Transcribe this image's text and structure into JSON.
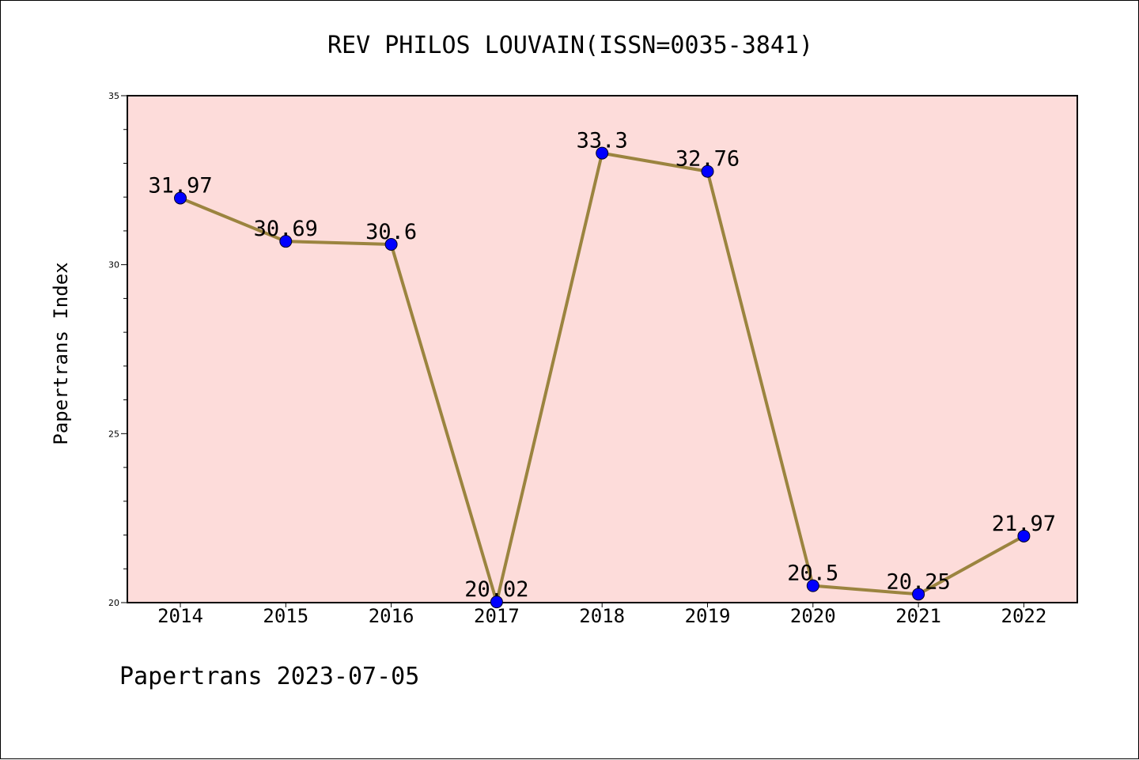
{
  "chart_data": {
    "type": "line",
    "title": "REV PHILOS LOUVAIN(ISSN=0035-3841)",
    "xlabel": "",
    "ylabel": "Papertrans Index",
    "categories": [
      "2014",
      "2015",
      "2016",
      "2017",
      "2018",
      "2019",
      "2020",
      "2021",
      "2022"
    ],
    "series": [
      {
        "values": [
          31.97,
          30.69,
          30.6,
          20.02,
          33.3,
          32.76,
          20.5,
          20.25,
          21.97
        ],
        "labels": [
          "31.97",
          "30.69",
          "30.6",
          "20.02",
          "33.3",
          "32.76",
          "20.5",
          "20.25",
          "21.97"
        ]
      }
    ],
    "ylim": [
      20,
      35
    ],
    "yticks": [
      "35",
      "30",
      "25",
      "20"
    ],
    "grid": false,
    "legend": "none",
    "colors": {
      "plot_background": "#fddcda",
      "line": "#9b843f",
      "marker": "#0000ff"
    }
  },
  "footer": "Papertrans 2023-07-05"
}
